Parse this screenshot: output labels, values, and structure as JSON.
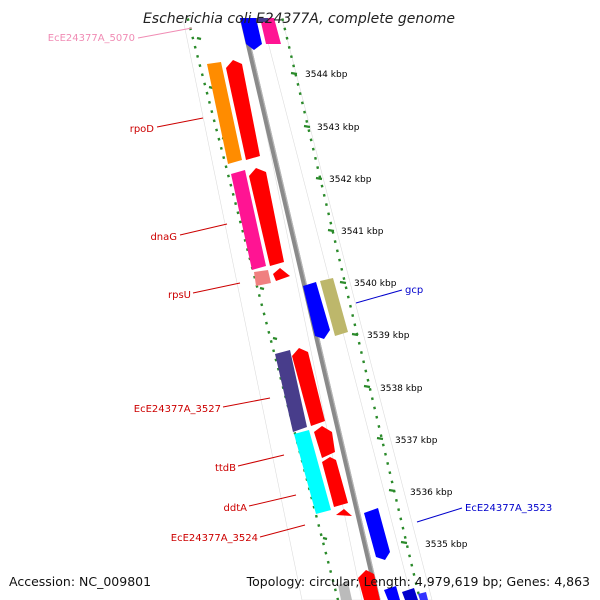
{
  "title": "Escherichia coli E24377A, complete genome",
  "footer": {
    "accession": "Accession: NC_009801",
    "topology": "Topology: circular; Length: 4,979,619 bp; Genes: 4,863"
  },
  "colors": {
    "backbone": "#8a8a8a",
    "track_dots": "#2a8a2a",
    "label_forward": "#cc0000",
    "label_reverse": "#0000cc",
    "label_offscreen": "#f08cb4",
    "tick_text": "#000000"
  },
  "position_ticks": [
    "3544 kbp",
    "3543 kbp",
    "3542 kbp",
    "3541 kbp",
    "3540 kbp",
    "3539 kbp",
    "3538 kbp",
    "3537 kbp",
    "3536 kbp",
    "3535 kbp"
  ],
  "gene_labels": [
    {
      "name": "EcE24377A_5070",
      "strand": "offscreen"
    },
    {
      "name": "rpoD",
      "strand": "forward"
    },
    {
      "name": "dnaG",
      "strand": "forward"
    },
    {
      "name": "rpsU",
      "strand": "forward"
    },
    {
      "name": "gcp",
      "strand": "reverse"
    },
    {
      "name": "EcE24377A_3527",
      "strand": "forward"
    },
    {
      "name": "ttdB",
      "strand": "forward"
    },
    {
      "name": "ddtA",
      "strand": "forward"
    },
    {
      "name": "EcE24377A_3524",
      "strand": "forward"
    },
    {
      "name": "EcE24377A_3523",
      "strand": "reverse"
    }
  ],
  "features": [
    {
      "name": "rpoD",
      "track": "cog",
      "color": "#ff8c00",
      "strand": "forward"
    },
    {
      "name": "rpoD",
      "track": "strand",
      "color": "#ff0000",
      "strand": "forward"
    },
    {
      "name": "dnaG",
      "track": "cog",
      "color": "#ff1493",
      "strand": "forward"
    },
    {
      "name": "dnaG",
      "track": "strand",
      "color": "#ff0000",
      "strand": "forward"
    },
    {
      "name": "rpsU",
      "track": "cog",
      "color": "#f08080",
      "strand": "forward"
    },
    {
      "name": "rpsU",
      "track": "strand",
      "color": "#ff0000",
      "strand": "forward"
    },
    {
      "name": "gcp",
      "track": "strand",
      "color": "#0000ff",
      "strand": "reverse"
    },
    {
      "name": "gcp",
      "track": "cog",
      "color": "#bdb76b",
      "strand": "reverse"
    },
    {
      "name": "EcE24377A_3527",
      "track": "cog",
      "color": "#483d8b",
      "strand": "forward"
    },
    {
      "name": "EcE24377A_3527",
      "track": "strand",
      "color": "#ff0000",
      "strand": "forward"
    },
    {
      "name": "ttdB",
      "track": "cog",
      "color": "#00ffff",
      "strand": "forward"
    },
    {
      "name": "ttdB",
      "track": "strand",
      "color": "#ff0000",
      "strand": "forward"
    },
    {
      "name": "ddtA",
      "track": "cog",
      "color": "#00ffff",
      "strand": "forward"
    },
    {
      "name": "ddtA",
      "track": "strand",
      "color": "#ff0000",
      "strand": "forward"
    },
    {
      "name": "EcE24377A_3524",
      "track": "strand",
      "color": "#ff0000",
      "strand": "forward"
    },
    {
      "name": "EcE24377A_3523",
      "track": "strand",
      "color": "#0000ff",
      "strand": "reverse"
    }
  ]
}
